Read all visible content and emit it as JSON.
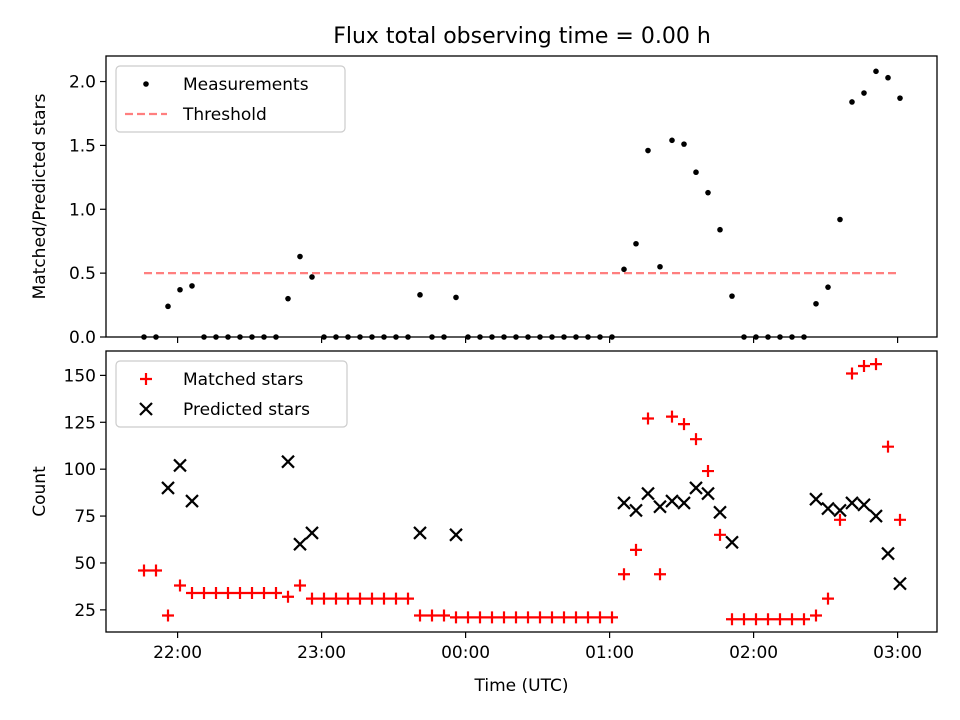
{
  "figure": {
    "title": "Flux total observing time = 0.00 h"
  },
  "chart_data": [
    {
      "type": "scatter",
      "ylabel": "Matched/Predicted stars",
      "ylim": [
        0,
        2.2
      ],
      "yticks": [
        0.0,
        0.5,
        1.0,
        1.5,
        2.0
      ],
      "ytick_labels": [
        "0.0",
        "0.5",
        "1.0",
        "1.5",
        "2.0"
      ],
      "xtick_labels_visible": false,
      "legend_position": "top-left",
      "series": [
        {
          "name": "Measurements",
          "marker": "dot",
          "color": "#000000",
          "points": [
            [
              "21:46",
              0.0
            ],
            [
              "21:51",
              0.0
            ],
            [
              "21:56",
              0.24
            ],
            [
              "22:01",
              0.37
            ],
            [
              "22:06",
              0.4
            ],
            [
              "22:11",
              0.0
            ],
            [
              "22:16",
              0.0
            ],
            [
              "22:21",
              0.0
            ],
            [
              "22:26",
              0.0
            ],
            [
              "22:31",
              0.0
            ],
            [
              "22:36",
              0.0
            ],
            [
              "22:41",
              0.0
            ],
            [
              "22:46",
              0.3
            ],
            [
              "22:51",
              0.63
            ],
            [
              "22:56",
              0.47
            ],
            [
              "23:01",
              0.0
            ],
            [
              "23:06",
              0.0
            ],
            [
              "23:11",
              0.0
            ],
            [
              "23:16",
              0.0
            ],
            [
              "23:21",
              0.0
            ],
            [
              "23:26",
              0.0
            ],
            [
              "23:31",
              0.0
            ],
            [
              "23:36",
              0.0
            ],
            [
              "23:41",
              0.33
            ],
            [
              "23:46",
              0.0
            ],
            [
              "23:51",
              0.0
            ],
            [
              "23:56",
              0.31
            ],
            [
              "00:01",
              0.0
            ],
            [
              "00:06",
              0.0
            ],
            [
              "00:11",
              0.0
            ],
            [
              "00:16",
              0.0
            ],
            [
              "00:21",
              0.0
            ],
            [
              "00:26",
              0.0
            ],
            [
              "00:31",
              0.0
            ],
            [
              "00:36",
              0.0
            ],
            [
              "00:41",
              0.0
            ],
            [
              "00:46",
              0.0
            ],
            [
              "00:51",
              0.0
            ],
            [
              "00:56",
              0.0
            ],
            [
              "01:01",
              0.0
            ],
            [
              "01:06",
              0.53
            ],
            [
              "01:11",
              0.73
            ],
            [
              "01:16",
              1.46
            ],
            [
              "01:21",
              0.55
            ],
            [
              "01:26",
              1.54
            ],
            [
              "01:31",
              1.51
            ],
            [
              "01:36",
              1.29
            ],
            [
              "01:41",
              1.13
            ],
            [
              "01:46",
              0.84
            ],
            [
              "01:51",
              0.32
            ],
            [
              "01:56",
              0.0
            ],
            [
              "02:01",
              0.0
            ],
            [
              "02:06",
              0.0
            ],
            [
              "02:11",
              0.0
            ],
            [
              "02:16",
              0.0
            ],
            [
              "02:21",
              0.0
            ],
            [
              "02:26",
              0.26
            ],
            [
              "02:31",
              0.39
            ],
            [
              "02:36",
              0.92
            ],
            [
              "02:41",
              1.84
            ],
            [
              "02:46",
              1.91
            ],
            [
              "02:51",
              2.08
            ],
            [
              "02:56",
              2.03
            ],
            [
              "03:01",
              1.87
            ]
          ]
        },
        {
          "name": "Threshold",
          "line": "dashed",
          "color": "#ff7f7f",
          "points": [
            [
              "21:46",
              0.5
            ],
            [
              "03:01",
              0.5
            ]
          ]
        }
      ]
    },
    {
      "type": "scatter",
      "xlabel": "Time (UTC)",
      "ylabel": "Count",
      "ylim": [
        13.2,
        163
      ],
      "yticks": [
        25,
        50,
        75,
        100,
        125,
        150
      ],
      "ytick_labels": [
        "25",
        "50",
        "75",
        "100",
        "125",
        "150"
      ],
      "xticks": [
        "22:00",
        "23:00",
        "00:00",
        "01:00",
        "02:00",
        "03:00"
      ],
      "xtick_labels": [
        "22:00",
        "23:00",
        "00:00",
        "01:00",
        "02:00",
        "03:00"
      ],
      "legend_position": "top-left",
      "series": [
        {
          "name": "Matched stars",
          "marker": "plus",
          "color": "#ff0000",
          "points": [
            [
              "21:46",
              46
            ],
            [
              "21:51",
              46
            ],
            [
              "21:56",
              22
            ],
            [
              "22:01",
              38
            ],
            [
              "22:06",
              34
            ],
            [
              "22:11",
              34
            ],
            [
              "22:16",
              34
            ],
            [
              "22:21",
              34
            ],
            [
              "22:26",
              34
            ],
            [
              "22:31",
              34
            ],
            [
              "22:36",
              34
            ],
            [
              "22:41",
              34
            ],
            [
              "22:46",
              32
            ],
            [
              "22:51",
              38
            ],
            [
              "22:56",
              31
            ],
            [
              "23:01",
              31
            ],
            [
              "23:06",
              31
            ],
            [
              "23:11",
              31
            ],
            [
              "23:16",
              31
            ],
            [
              "23:21",
              31
            ],
            [
              "23:26",
              31
            ],
            [
              "23:31",
              31
            ],
            [
              "23:36",
              31
            ],
            [
              "23:41",
              22
            ],
            [
              "23:46",
              22
            ],
            [
              "23:51",
              22
            ],
            [
              "23:56",
              21
            ],
            [
              "00:01",
              21
            ],
            [
              "00:06",
              21
            ],
            [
              "00:11",
              21
            ],
            [
              "00:16",
              21
            ],
            [
              "00:21",
              21
            ],
            [
              "00:26",
              21
            ],
            [
              "00:31",
              21
            ],
            [
              "00:36",
              21
            ],
            [
              "00:41",
              21
            ],
            [
              "00:46",
              21
            ],
            [
              "00:51",
              21
            ],
            [
              "00:56",
              21
            ],
            [
              "01:01",
              21
            ],
            [
              "01:06",
              44
            ],
            [
              "01:11",
              57
            ],
            [
              "01:16",
              127
            ],
            [
              "01:21",
              44
            ],
            [
              "01:26",
              128
            ],
            [
              "01:31",
              124
            ],
            [
              "01:36",
              116
            ],
            [
              "01:41",
              99
            ],
            [
              "01:46",
              65
            ],
            [
              "01:51",
              20
            ],
            [
              "01:56",
              20
            ],
            [
              "02:01",
              20
            ],
            [
              "02:06",
              20
            ],
            [
              "02:11",
              20
            ],
            [
              "02:16",
              20
            ],
            [
              "02:21",
              20
            ],
            [
              "02:26",
              22
            ],
            [
              "02:31",
              31
            ],
            [
              "02:36",
              73
            ],
            [
              "02:41",
              151
            ],
            [
              "02:46",
              155
            ],
            [
              "02:51",
              156
            ],
            [
              "02:56",
              112
            ],
            [
              "03:01",
              73
            ]
          ]
        },
        {
          "name": "Predicted stars",
          "marker": "x",
          "color": "#000000",
          "points": [
            [
              "21:56",
              90
            ],
            [
              "22:01",
              102
            ],
            [
              "22:06",
              83
            ],
            [
              "22:46",
              104
            ],
            [
              "22:51",
              60
            ],
            [
              "22:56",
              66
            ],
            [
              "23:41",
              66
            ],
            [
              "23:56",
              65
            ],
            [
              "01:06",
              82
            ],
            [
              "01:11",
              78
            ],
            [
              "01:16",
              87
            ],
            [
              "01:21",
              80
            ],
            [
              "01:26",
              83
            ],
            [
              "01:31",
              82
            ],
            [
              "01:36",
              90
            ],
            [
              "01:41",
              87
            ],
            [
              "01:46",
              77
            ],
            [
              "01:51",
              61
            ],
            [
              "02:26",
              84
            ],
            [
              "02:31",
              79
            ],
            [
              "02:36",
              78
            ],
            [
              "02:41",
              82
            ],
            [
              "02:46",
              81
            ],
            [
              "02:51",
              75
            ],
            [
              "02:56",
              55
            ],
            [
              "03:01",
              39
            ]
          ]
        }
      ]
    }
  ]
}
